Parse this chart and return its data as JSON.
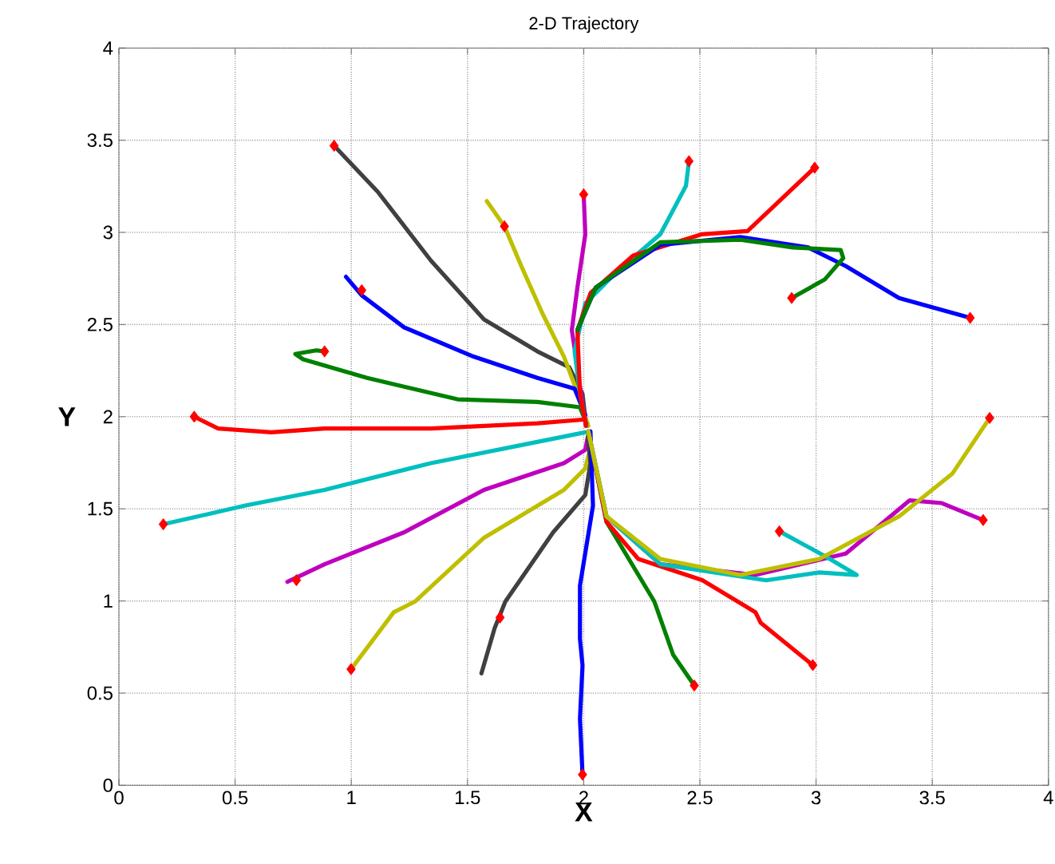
{
  "chart_data": {
    "type": "line",
    "title": "2-D Trajectory",
    "xlabel": "X",
    "ylabel": "Y",
    "xlim": [
      0,
      4
    ],
    "ylim": [
      0,
      4
    ],
    "xticks": [
      0,
      0.5,
      1,
      1.5,
      2,
      2.5,
      3,
      3.5,
      4
    ],
    "yticks": [
      0,
      0.5,
      1,
      1.5,
      2,
      2.5,
      3,
      3.5,
      4
    ],
    "grid": true,
    "marker": "none",
    "line_style": "solid",
    "series": [
      {
        "color": "#404040",
        "x": [
          0.926,
          1.114,
          1.343,
          1.571,
          1.801,
          1.938,
          1.995,
          2.007
        ],
        "values": [
          3.47,
          3.22,
          2.846,
          2.528,
          2.354,
          2.268,
          2.123,
          1.993
        ]
      },
      {
        "color": "#bfbf00",
        "x": [
          1.583,
          1.659,
          1.732,
          1.824,
          1.915,
          1.984,
          2.02
        ],
        "values": [
          3.17,
          3.033,
          2.816,
          2.556,
          2.326,
          2.094,
          1.95
        ]
      },
      {
        "color": "#0000ff",
        "x": [
          0.977,
          1.045,
          1.228,
          1.526,
          1.801,
          1.961,
          2.007
        ],
        "values": [
          2.759,
          2.658,
          2.484,
          2.326,
          2.21,
          2.152,
          2.008
        ]
      },
      {
        "color": "#008000",
        "x": [
          0.885,
          0.85,
          0.759,
          0.793,
          1.068,
          1.457,
          1.801,
          1.984,
          2.011
        ],
        "values": [
          2.354,
          2.36,
          2.34,
          2.311,
          2.21,
          2.094,
          2.08,
          2.051,
          1.964
        ]
      },
      {
        "color": "#ff0000",
        "x": [
          0.324,
          0.427,
          0.656,
          0.885,
          1.343,
          1.801,
          2.007
        ],
        "values": [
          2.0,
          1.936,
          1.915,
          1.936,
          1.936,
          1.964,
          1.985
        ]
      },
      {
        "color": "#00bfbf",
        "x": [
          0.191,
          0.541,
          0.885,
          1.343,
          1.801,
          2.007
        ],
        "values": [
          1.416,
          1.517,
          1.603,
          1.748,
          1.863,
          1.915
        ]
      },
      {
        "color": "#bf00bf",
        "x": [
          0.725,
          0.885,
          1.228,
          1.571,
          1.915,
          2.007,
          2.018
        ],
        "values": [
          1.104,
          1.199,
          1.373,
          1.603,
          1.748,
          1.82,
          1.892
        ]
      },
      {
        "color": "#bfbf00",
        "x": [
          0.999,
          1.183,
          1.274,
          1.571,
          1.915,
          2.007,
          2.029,
          2.018
        ],
        "values": [
          0.63,
          0.939,
          0.997,
          1.343,
          1.603,
          1.719,
          1.835,
          1.9
        ]
      },
      {
        "color": "#404040",
        "x": [
          1.56,
          1.617,
          1.663,
          1.869,
          2.007,
          2.029,
          2.018
        ],
        "values": [
          0.607,
          0.853,
          0.997,
          1.373,
          1.575,
          1.748,
          1.892
        ]
      },
      {
        "color": "#0000ff",
        "x": [
          1.995,
          1.984,
          1.995,
          1.984,
          1.984,
          2.04,
          2.029
        ],
        "values": [
          0.058,
          0.361,
          0.65,
          0.795,
          1.083,
          1.517,
          1.921
        ]
      },
      {
        "color": "#008000",
        "x": [
          2.02,
          2.098,
          2.304,
          2.385,
          2.476
        ],
        "values": [
          1.92,
          1.43,
          0.997,
          0.708,
          0.541
        ]
      },
      {
        "color": "#ff0000",
        "x": [
          2.02,
          2.098,
          2.235,
          2.51,
          2.739,
          2.762,
          2.986
        ],
        "values": [
          1.92,
          1.43,
          1.228,
          1.113,
          0.939,
          0.881,
          0.652
        ]
      },
      {
        "color": "#bf00bf",
        "x": [
          2.02,
          2.098,
          2.33,
          2.739,
          3.128,
          3.265,
          3.403,
          3.541,
          3.719
        ],
        "values": [
          1.92,
          1.459,
          1.199,
          1.141,
          1.257,
          1.401,
          1.546,
          1.531,
          1.439
        ]
      },
      {
        "color": "#00bfbf",
        "x": [
          2.02,
          2.098,
          2.33,
          2.785,
          3.014,
          3.175,
          3.04,
          2.842
        ],
        "values": [
          1.92,
          1.459,
          1.199,
          1.112,
          1.155,
          1.141,
          1.242,
          1.378
        ]
      },
      {
        "color": "#bfbf00",
        "x": [
          2.02,
          2.098,
          2.33,
          2.674,
          3.014,
          3.357,
          3.586,
          3.747
        ],
        "values": [
          1.92,
          1.459,
          1.228,
          1.141,
          1.228,
          1.459,
          1.69,
          1.993
        ]
      },
      {
        "color": "#bf00bf",
        "x": [
          2.0,
          2.007,
          1.973,
          1.949,
          1.973,
          1.995,
          2.01
        ],
        "values": [
          3.206,
          2.99,
          2.701,
          2.47,
          2.268,
          2.066,
          1.95
        ]
      },
      {
        "color": "#00bfbf",
        "x": [
          2.453,
          2.44,
          2.33,
          2.144,
          2.007,
          1.961,
          1.984,
          2.01
        ],
        "values": [
          3.386,
          3.252,
          2.99,
          2.788,
          2.615,
          2.355,
          2.123,
          1.95
        ]
      },
      {
        "color": "#ff0000",
        "x": [
          2.994,
          2.705,
          2.51,
          2.213,
          2.03,
          1.973,
          1.984,
          2.01
        ],
        "values": [
          3.351,
          3.007,
          2.99,
          2.874,
          2.672,
          2.47,
          2.123,
          1.95
        ]
      },
      {
        "color": "#0000ff",
        "x": [
          1.973,
          2.052,
          2.33,
          2.674,
          2.966,
          3.128,
          3.357,
          3.663
        ],
        "values": [
          2.47,
          2.701,
          2.932,
          2.975,
          2.918,
          2.817,
          2.644,
          2.536
        ]
      },
      {
        "color": "#008000",
        "x": [
          1.973,
          2.052,
          2.33,
          2.674,
          2.9,
          3.106,
          3.117,
          3.037,
          2.895
        ],
        "values": [
          2.47,
          2.701,
          2.946,
          2.96,
          2.918,
          2.904,
          2.86,
          2.744,
          2.644
        ]
      },
      {
        "type": "scatter",
        "marker": "diamond",
        "color": "#ff0000",
        "x": [
          0.926,
          1.659,
          1.045,
          0.885,
          0.324,
          0.191,
          0.764,
          0.999,
          1.64,
          1.995,
          2.476,
          2.986,
          3.747,
          3.719,
          2.842,
          2.0,
          2.453,
          2.994,
          3.663,
          2.895
        ],
        "values": [
          3.47,
          3.033,
          2.686,
          2.354,
          2.0,
          1.416,
          1.113,
          0.63,
          0.91,
          0.058,
          0.541,
          0.652,
          1.993,
          1.439,
          1.378,
          3.206,
          3.386,
          3.351,
          2.536,
          2.644
        ]
      }
    ]
  }
}
